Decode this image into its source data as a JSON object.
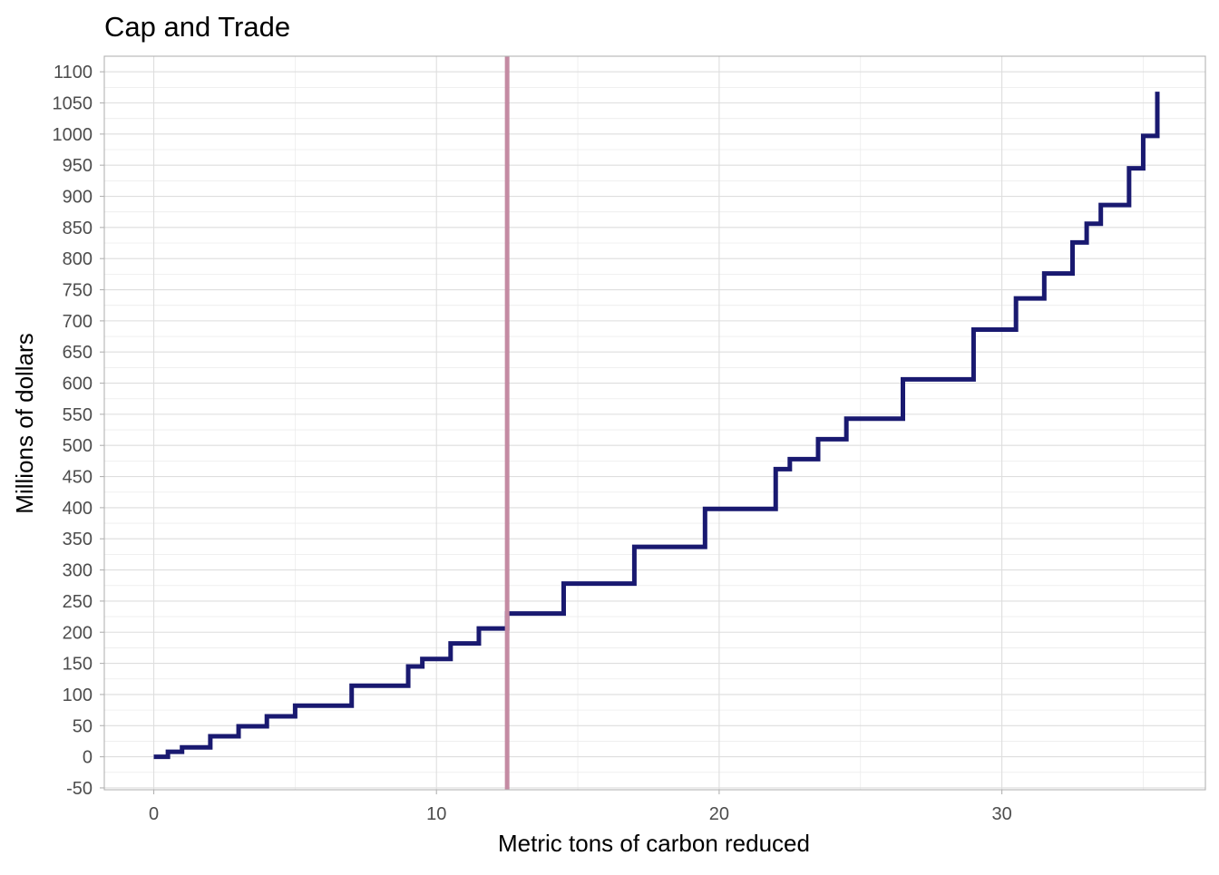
{
  "chart_data": {
    "type": "line",
    "title": "Cap and Trade",
    "xlabel": "Metric tons of carbon reduced",
    "ylabel": "Millions of dollars",
    "xlim": [
      -1.75,
      37.2
    ],
    "ylim": [
      -53,
      1125
    ],
    "x_ticks": [
      0,
      10,
      20,
      30
    ],
    "x_tick_labels": [
      "0",
      "10",
      "20",
      "30"
    ],
    "y_ticks": [
      -50,
      0,
      50,
      100,
      150,
      200,
      250,
      300,
      350,
      400,
      450,
      500,
      550,
      600,
      650,
      700,
      750,
      800,
      850,
      900,
      950,
      1000,
      1050,
      1100
    ],
    "y_tick_labels": [
      "-50",
      "0",
      "50",
      "100",
      "150",
      "200",
      "250",
      "300",
      "350",
      "400",
      "450",
      "500",
      "550",
      "600",
      "650",
      "700",
      "750",
      "800",
      "850",
      "900",
      "950",
      "1000",
      "1050",
      "1100"
    ],
    "grid": true,
    "legend": "none",
    "series": [
      {
        "color": "#191970",
        "line_style": "step",
        "points": [
          [
            0,
            0
          ],
          [
            0.5,
            0
          ],
          [
            0.5,
            8
          ],
          [
            1,
            8
          ],
          [
            1,
            15
          ],
          [
            2,
            15
          ],
          [
            2,
            33
          ],
          [
            3,
            33
          ],
          [
            3,
            49
          ],
          [
            4,
            49
          ],
          [
            4,
            65
          ],
          [
            5,
            65
          ],
          [
            5,
            82
          ],
          [
            7,
            82
          ],
          [
            7,
            114
          ],
          [
            9,
            114
          ],
          [
            9,
            145
          ],
          [
            9.5,
            145
          ],
          [
            9.5,
            157
          ],
          [
            10.5,
            157
          ],
          [
            10.5,
            182
          ],
          [
            11.5,
            182
          ],
          [
            11.5,
            206
          ],
          [
            12.5,
            206
          ],
          [
            12.5,
            230
          ],
          [
            14.5,
            230
          ],
          [
            14.5,
            278
          ],
          [
            17,
            278
          ],
          [
            17,
            337
          ],
          [
            19.5,
            337
          ],
          [
            19.5,
            398
          ],
          [
            22,
            398
          ],
          [
            22,
            462
          ],
          [
            22.5,
            462
          ],
          [
            22.5,
            478
          ],
          [
            23.5,
            478
          ],
          [
            23.5,
            510
          ],
          [
            24.5,
            510
          ],
          [
            24.5,
            543
          ],
          [
            26.5,
            543
          ],
          [
            26.5,
            606
          ],
          [
            29,
            606
          ],
          [
            29,
            686
          ],
          [
            30.5,
            686
          ],
          [
            30.5,
            736
          ],
          [
            31.5,
            736
          ],
          [
            31.5,
            776
          ],
          [
            32.5,
            776
          ],
          [
            32.5,
            826
          ],
          [
            33,
            826
          ],
          [
            33,
            856
          ],
          [
            33.5,
            856
          ],
          [
            33.5,
            886
          ],
          [
            34.5,
            886
          ],
          [
            34.5,
            945
          ],
          [
            35,
            945
          ],
          [
            35,
            997
          ],
          [
            35.5,
            997
          ],
          [
            35.5,
            1068
          ]
        ]
      }
    ],
    "vlines": [
      {
        "x": 12.5,
        "color": "#c48ba3"
      }
    ]
  },
  "colors": {
    "background": "#ffffff",
    "grid_major": "#dedede",
    "grid_minor": "#ececec",
    "axis_line": "#b3b3b3",
    "tick_text": "#4d4d4d",
    "title_text": "#000000"
  }
}
